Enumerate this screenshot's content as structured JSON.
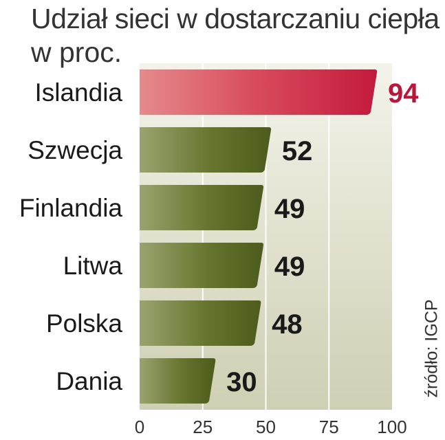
{
  "title": "Udział sieci w dostarczaniu ciepła",
  "subtitle": "w proc.",
  "source": "źródło: IGCP",
  "colors": {
    "highlight_bar": "#c8203f",
    "highlight_value": "#b8163a",
    "bar": "#5a6a25",
    "value": "#1a1a1a",
    "panel": "#d9d9c3",
    "grid": "#ffffff"
  },
  "chart_data": {
    "type": "bar",
    "orientation": "horizontal",
    "categories": [
      "Islandia",
      "Szwecja",
      "Finlandia",
      "Litwa",
      "Polska",
      "Dania"
    ],
    "values": [
      94,
      52,
      49,
      49,
      48,
      30
    ],
    "value_labels": [
      "94",
      "52",
      "49",
      "49",
      "48",
      "30"
    ],
    "highlighted": "Islandia",
    "xlim": [
      0,
      100
    ],
    "xticks": [
      "0",
      "25",
      "50",
      "75",
      "100"
    ],
    "grid": true
  }
}
